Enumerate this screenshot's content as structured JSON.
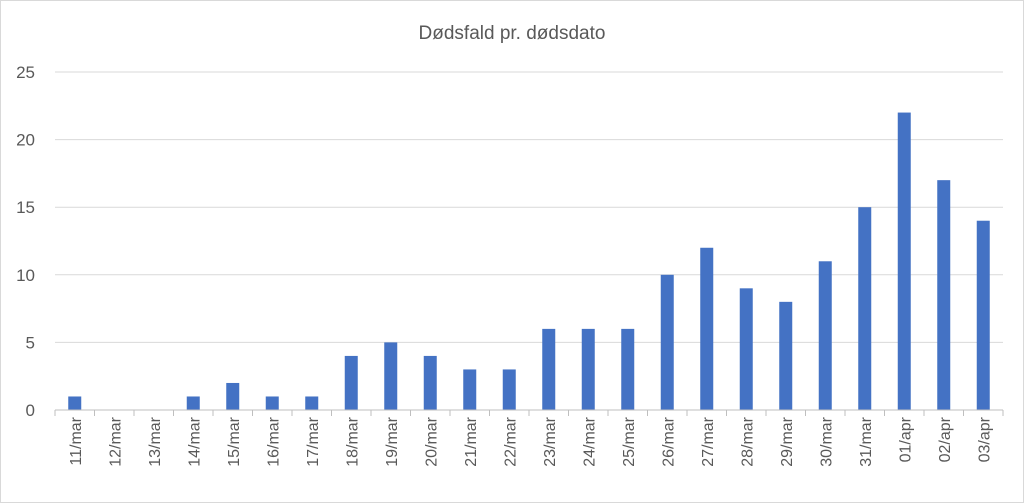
{
  "chart_data": {
    "type": "bar",
    "title": "Dødsfald pr. dødsdato",
    "xlabel": "",
    "ylabel": "",
    "ylim": [
      0,
      25
    ],
    "yticks": [
      "0",
      "5",
      "10",
      "15",
      "20",
      "25"
    ],
    "grid": true,
    "legend": "none",
    "bar_color": "#4472c4",
    "categories": [
      "11/mar",
      "12/mar",
      "13/mar",
      "14/mar",
      "15/mar",
      "16/mar",
      "17/mar",
      "18/mar",
      "19/mar",
      "20/mar",
      "21/mar",
      "22/mar",
      "23/mar",
      "24/mar",
      "25/mar",
      "26/mar",
      "27/mar",
      "28/mar",
      "29/mar",
      "30/mar",
      "31/mar",
      "01/apr",
      "02/apr",
      "03/apr"
    ],
    "values": [
      1,
      0,
      0,
      1,
      2,
      1,
      1,
      4,
      5,
      4,
      3,
      3,
      6,
      6,
      6,
      10,
      12,
      9,
      8,
      11,
      15,
      22,
      17,
      14
    ]
  }
}
